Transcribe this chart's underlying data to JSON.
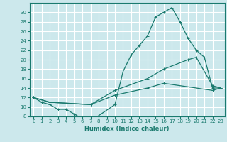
{
  "xlabel": "Humidex (Indice chaleur)",
  "bg_color": "#cce8ec",
  "grid_color": "#ffffff",
  "line_color": "#1a7a6e",
  "xlim": [
    -0.5,
    23.5
  ],
  "ylim": [
    8,
    32
  ],
  "xticks": [
    0,
    1,
    2,
    3,
    4,
    5,
    6,
    7,
    8,
    9,
    10,
    11,
    12,
    13,
    14,
    15,
    16,
    17,
    18,
    19,
    20,
    21,
    22,
    23
  ],
  "yticks": [
    8,
    10,
    12,
    14,
    16,
    18,
    20,
    22,
    24,
    26,
    28,
    30
  ],
  "series": [
    {
      "x": [
        0,
        1,
        2,
        3,
        4,
        5,
        6,
        7,
        10,
        11,
        12,
        13,
        14,
        15,
        16,
        17,
        18,
        19,
        20,
        21,
        22,
        23
      ],
      "y": [
        12,
        11,
        10.5,
        9.5,
        9.5,
        8.5,
        7.5,
        7.0,
        10.5,
        17.5,
        21,
        23,
        25,
        29,
        30,
        31,
        28,
        24.5,
        22,
        20.5,
        14,
        14
      ]
    },
    {
      "x": [
        0,
        2,
        7,
        10,
        14,
        16,
        19,
        20,
        22,
        23
      ],
      "y": [
        12,
        11,
        10.5,
        13.5,
        16,
        18,
        20,
        20.5,
        14.5,
        14
      ]
    },
    {
      "x": [
        0,
        2,
        7,
        10,
        14,
        16,
        22,
        23
      ],
      "y": [
        12,
        11,
        10.5,
        12.5,
        14,
        15,
        13.5,
        14
      ]
    }
  ]
}
